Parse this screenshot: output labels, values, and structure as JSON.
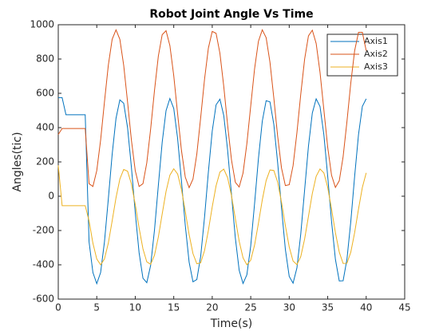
{
  "chart_data": {
    "type": "line",
    "title": "Robot Joint Angle Vs Time",
    "x_label": "Time(s)",
    "y_label": "Angles(tic)",
    "xlim": [
      0,
      45
    ],
    "xticks": [
      0,
      5,
      10,
      15,
      20,
      25,
      30,
      35,
      40,
      45
    ],
    "ylim": [
      -600,
      1000
    ],
    "yticks": [
      -600,
      -400,
      -200,
      0,
      200,
      400,
      600,
      800,
      1000
    ],
    "grid": false,
    "legend": "upper right",
    "x": [
      0,
      0.5,
      1,
      1.5,
      2,
      2.5,
      3,
      3.5,
      4,
      4.5,
      5,
      5.5,
      6,
      6.5,
      7,
      7.5,
      8,
      8.5,
      9,
      9.5,
      10,
      10.5,
      11,
      11.5,
      12,
      12.5,
      13,
      13.5,
      14,
      14.5,
      15,
      15.5,
      16,
      16.5,
      17,
      17.5,
      18,
      18.5,
      19,
      19.5,
      20,
      20.5,
      21,
      21.5,
      22,
      22.5,
      23,
      23.5,
      24,
      24.5,
      25,
      25.5,
      26,
      26.5,
      27,
      27.5,
      28,
      28.5,
      29,
      29.5,
      30,
      30.5,
      31,
      31.5,
      32,
      32.5,
      33,
      33.5,
      34,
      34.5,
      35,
      35.5,
      36,
      36.5,
      37,
      37.5,
      38,
      38.5,
      39,
      39.5,
      40
    ],
    "series": [
      {
        "name": "Axis1",
        "color": "#0072bd",
        "values": [
          575,
          575,
          475,
          475,
          475,
          475,
          475,
          475,
          -266,
          -445,
          -510,
          -445,
          -266,
          -17,
          244,
          454,
          562,
          542,
          400,
          169,
          -96,
          -330,
          -478,
          -504,
          -403,
          -197,
          63,
          315,
          499,
          570,
          512,
          338,
          90,
          -171,
          -385,
          -499,
          -486,
          -350,
          -122,
          142,
          380,
          533,
          566,
          470,
          268,
          10,
          -243,
          -432,
          -509,
          -458,
          -289,
          -43,
          219,
          437,
          557,
          550,
          419,
          194,
          -69,
          -310,
          -468,
          -507,
          -418,
          -220,
          36,
          292,
          485,
          568,
          523,
          359,
          116,
          -148,
          -368,
          -494,
          -493,
          -367,
          -147,
          117,
          359,
          524,
          568
        ]
      },
      {
        "name": "Axis2",
        "color": "#d95319",
        "values": [
          360,
          395,
          395,
          395,
          395,
          395,
          395,
          395,
          73,
          57,
          149,
          327,
          550,
          763,
          915,
          970,
          915,
          763,
          550,
          327,
          149,
          57,
          73,
          195,
          392,
          617,
          817,
          942,
          965,
          878,
          703,
          482,
          268,
          111,
          50,
          100,
          247,
          459,
          682,
          864,
          961,
          950,
          833,
          639,
          414,
          212,
          81,
          54,
          135,
          307,
          527,
          743,
          903,
          970,
          925,
          781,
          573,
          349,
          164,
          62,
          67,
          178,
          370,
          595,
          799,
          935,
          968,
          891,
          723,
          504,
          286,
          122,
          51,
          90,
          230,
          436,
          661,
          849,
          956,
          956,
          849
        ]
      },
      {
        "name": "Axis3",
        "color": "#edb120",
        "values": [
          180,
          -55,
          -55,
          -55,
          -55,
          -55,
          -55,
          -55,
          -144,
          -274,
          -366,
          -400,
          -366,
          -274,
          -144,
          -9,
          100,
          156,
          146,
          72,
          -48,
          -185,
          -307,
          -383,
          -397,
          -344,
          -238,
          -103,
          28,
          123,
          160,
          130,
          40,
          -89,
          -224,
          -335,
          -394,
          -388,
          -317,
          -199,
          -62,
          61,
          141,
          158,
          108,
          3,
          -130,
          -262,
          -359,
          -400,
          -373,
          -285,
          -158,
          -22,
          91,
          153,
          150,
          82,
          -35,
          -172,
          -296,
          -378,
          -399,
          -352,
          -250,
          -117,
          16,
          116,
          159,
          136,
          51,
          -75,
          -212,
          -326,
          -392,
          -391,
          -326,
          -212,
          -75,
          51,
          136
        ]
      }
    ]
  }
}
